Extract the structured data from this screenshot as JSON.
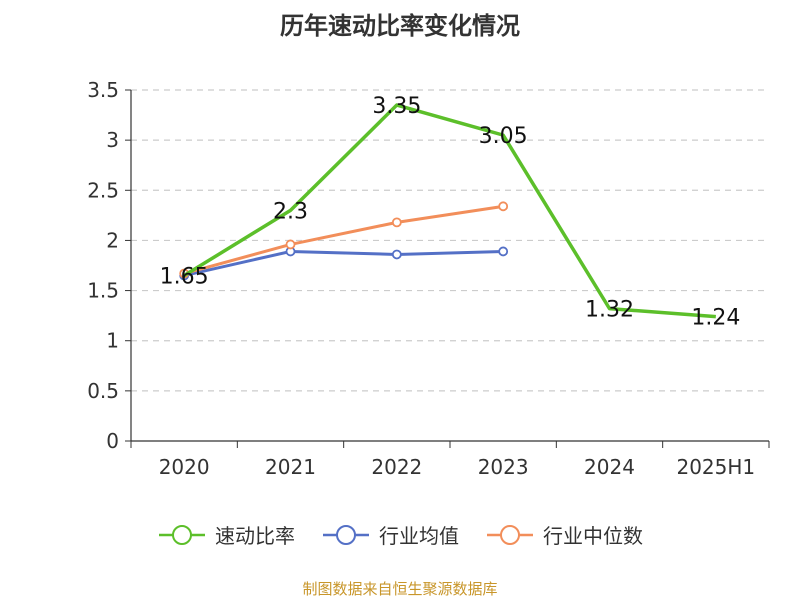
{
  "chart_data": {
    "type": "line",
    "title": "历年速动比率变化情况",
    "categories": [
      "2020",
      "2021",
      "2022",
      "2023",
      "2024",
      "2025H1"
    ],
    "y_ticks": [
      "0",
      "0.5",
      "1",
      "1.5",
      "2",
      "2.5",
      "3",
      "3.5"
    ],
    "ylim": [
      0,
      3.5
    ],
    "grid": true,
    "legend_position": "bottom",
    "series": [
      {
        "name": "速动比率",
        "color": "#5cbf2a",
        "values": [
          1.65,
          2.3,
          3.35,
          3.05,
          1.32,
          1.24
        ],
        "labels": [
          "1.65",
          "2.3",
          "3.35",
          "3.05",
          "1.32",
          "1.24"
        ],
        "show_labels": true,
        "markers": false
      },
      {
        "name": "行业均值",
        "color": "#5470c6",
        "values": [
          1.65,
          1.89,
          1.86,
          1.89,
          null,
          null
        ],
        "markers": true
      },
      {
        "name": "行业中位数",
        "color": "#f28e5a",
        "values": [
          1.67,
          1.96,
          2.18,
          2.34,
          null,
          null
        ],
        "markers": true
      }
    ]
  },
  "source_text": "制图数据来自恒生聚源数据库",
  "source_color": "#c8962a"
}
